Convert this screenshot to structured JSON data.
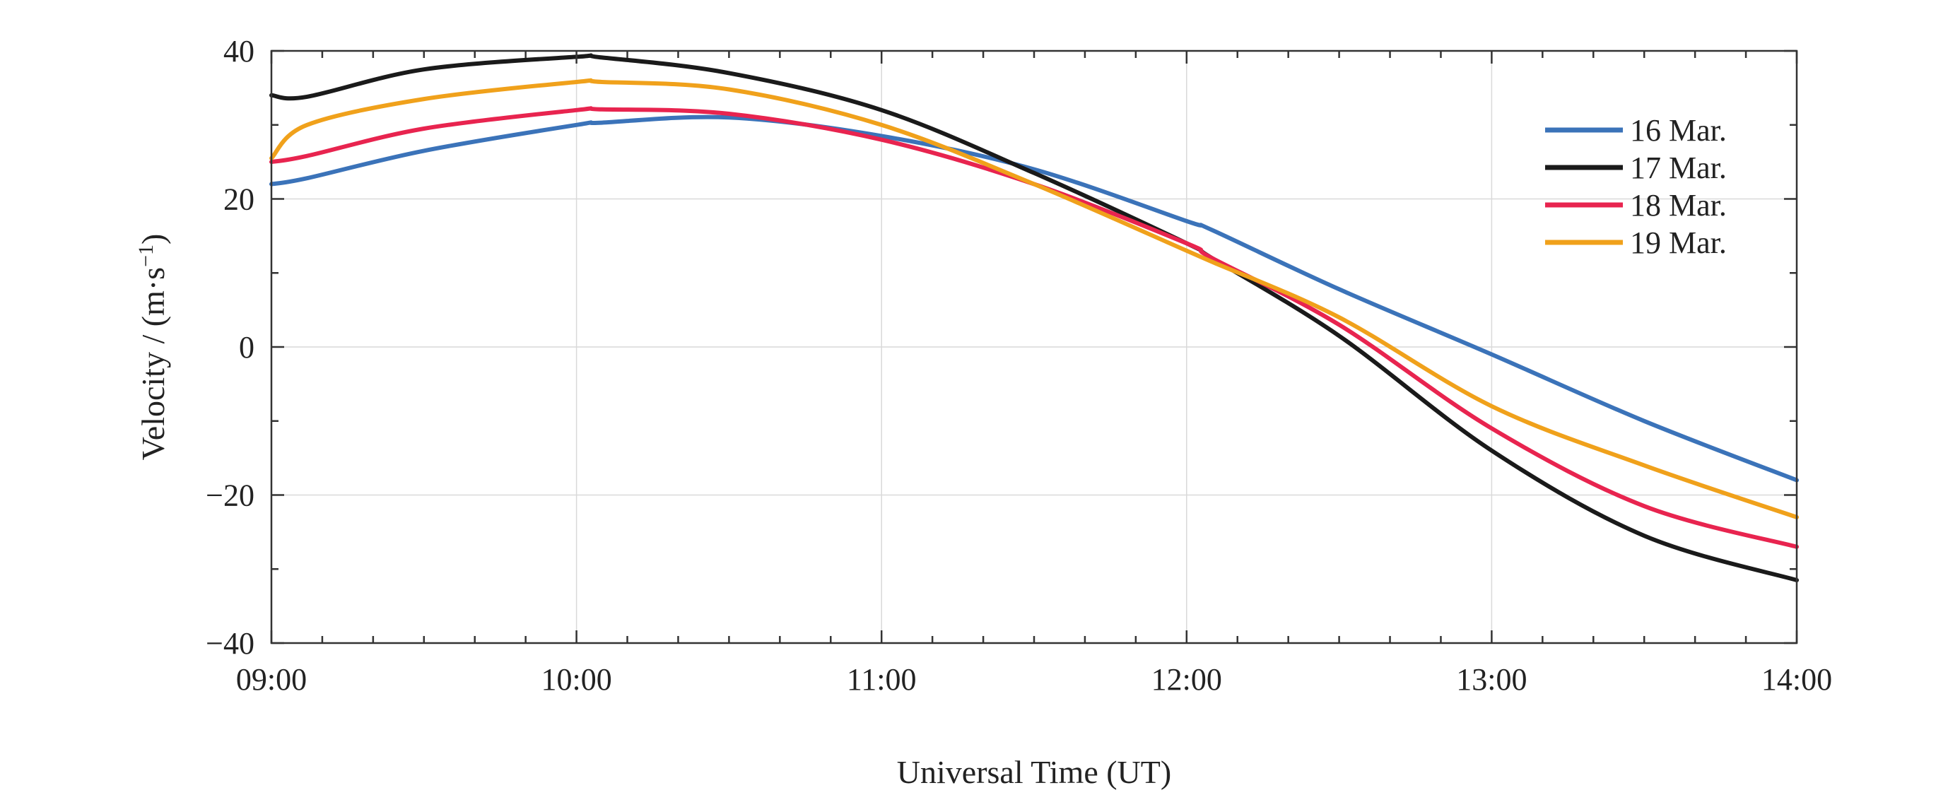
{
  "chart_data": {
    "type": "line",
    "xlabel": "Universal Time (UT)",
    "ylabel_main": "Velocity / (m·s",
    "ylabel_sup": "−1",
    "ylabel_close": ")",
    "x_ticks": [
      {
        "hours": 9,
        "label": "09:00"
      },
      {
        "hours": 10,
        "label": "10:00"
      },
      {
        "hours": 11,
        "label": "11:00"
      },
      {
        "hours": 12,
        "label": "12:00"
      },
      {
        "hours": 13,
        "label": "13:00"
      },
      {
        "hours": 14,
        "label": "14:00"
      }
    ],
    "y_ticks": [
      {
        "value": 40,
        "label": "40"
      },
      {
        "value": 20,
        "label": "20"
      },
      {
        "value": 0,
        "label": "0"
      },
      {
        "value": -20,
        "label": "−20"
      },
      {
        "value": -40,
        "label": "−40"
      }
    ],
    "xlim": [
      "09:00",
      "14:00"
    ],
    "ylim": [
      -40,
      40
    ],
    "grid": true,
    "legend_position": "top-right",
    "x": [
      "09:00",
      "09:07",
      "09:30",
      "10:00",
      "10:05",
      "10:30",
      "11:00",
      "11:30",
      "12:00",
      "12:05",
      "12:30",
      "13:00",
      "13:30",
      "14:00"
    ],
    "series": [
      {
        "name": "16 Mar.",
        "color": "#3b73b9",
        "values": [
          22,
          22.8,
          26.5,
          30,
          30.3,
          31,
          28.5,
          24,
          17,
          15.8,
          7.8,
          -1,
          -10,
          -18
        ]
      },
      {
        "name": "17 Mar.",
        "color": "#1a1a1a",
        "values": [
          34,
          33.8,
          37.5,
          39.2,
          39.1,
          37,
          32,
          23.5,
          14,
          12,
          1.5,
          -14,
          -25.5,
          -31.5
        ]
      },
      {
        "name": "18 Mar.",
        "color": "#e8244f",
        "values": [
          25,
          25.8,
          29.5,
          32,
          32.1,
          31.5,
          28,
          22,
          14,
          12,
          3,
          -11,
          -21.5,
          -27
        ]
      },
      {
        "name": "19 Mar.",
        "color": "#f0a11b",
        "values": [
          25.5,
          30,
          33.5,
          35.8,
          35.8,
          34.8,
          30,
          22,
          13,
          11.5,
          4,
          -8,
          -16,
          -23
        ]
      }
    ]
  }
}
